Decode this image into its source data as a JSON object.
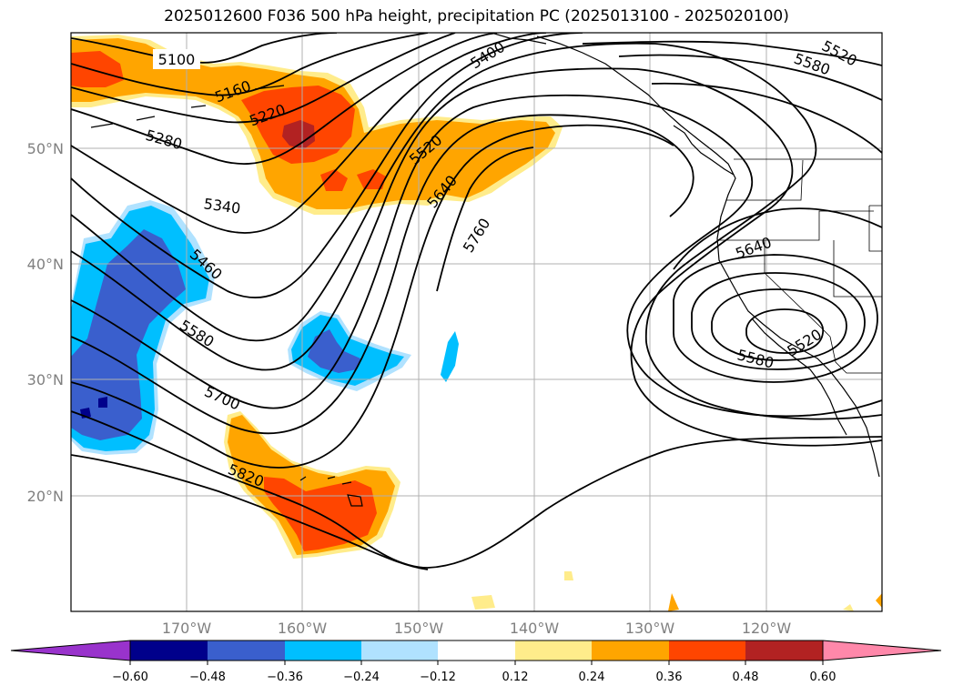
{
  "title": "2025012600 F036 500 hPa height, precipitation PC (2025013100 - 2025020100)",
  "lat_labels": [
    "50°N",
    "40°N",
    "30°N",
    "20°N"
  ],
  "lon_labels": [
    "170°W",
    "160°W",
    "150°W",
    "140°W",
    "130°W",
    "120°W"
  ],
  "contour_labels": [
    "5100",
    "5160",
    "5220",
    "5280",
    "5340",
    "5400",
    "5460",
    "5520",
    "5580",
    "5640",
    "5700",
    "5760",
    "5820",
    "5520",
    "5580",
    "5640",
    "5520",
    "5580"
  ],
  "colorbar": {
    "ticks": [
      "−0.60",
      "−0.48",
      "−0.36",
      "−0.24",
      "−0.12",
      "0.12",
      "0.24",
      "0.36",
      "0.48",
      "0.60"
    ],
    "colors": [
      "#9933cc",
      "#00008b",
      "#3a5fcd",
      "#00bfff",
      "#b0e2ff",
      "#ffffff",
      "#ffec8b",
      "#ffa500",
      "#ff4500",
      "#b22222",
      "#ff88aa"
    ]
  },
  "colors": {
    "orange": "#ffa500",
    "red_orange": "#ff4500",
    "dark_red": "#b22222",
    "light_yellow": "#ffec8b",
    "sky_blue": "#00bfff",
    "royal_blue": "#3a5fcd",
    "navy": "#00008b"
  }
}
